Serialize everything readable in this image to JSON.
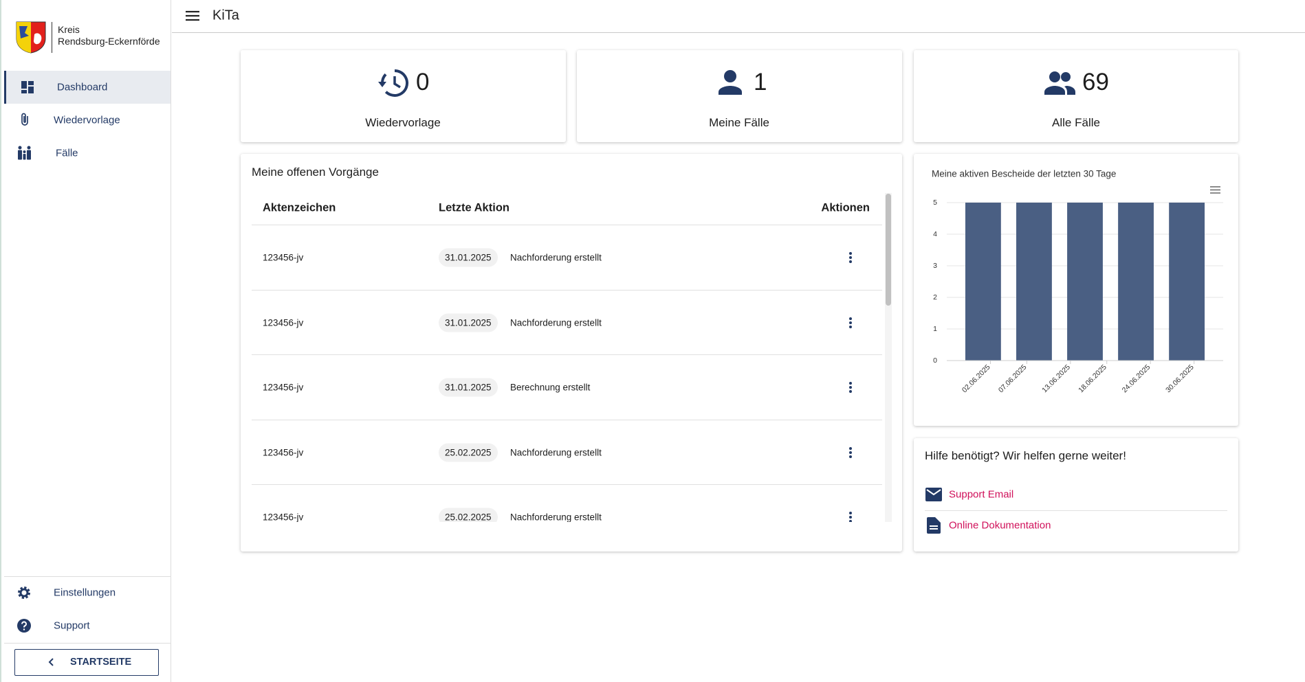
{
  "sidebar": {
    "logo": [
      "Kreis",
      "Rendsburg-Eckernförde"
    ],
    "nav": [
      "Dashboard",
      "Wiedervorlage",
      "Fälle"
    ],
    "footer_nav": [
      "Einstellungen",
      "Support"
    ],
    "button": "STARTSEITE"
  },
  "header": {
    "title": "KiTa"
  },
  "cards": [
    {
      "value": 0,
      "label": "Wiedervorlage"
    },
    {
      "value": 1,
      "label": "Meine Fälle"
    },
    {
      "value": 69,
      "label": "Alle Fälle"
    }
  ],
  "table": {
    "title": "Meine offenen Vorgänge",
    "columns": [
      "Aktenzeichen",
      "Letzte Aktion",
      "Aktionen"
    ],
    "rows": [
      [
        "123456-jv",
        "31.01.2025",
        "Nachforderung erstellt"
      ],
      [
        "123456-jv",
        "31.01.2025",
        "Nachforderung erstellt"
      ],
      [
        "123456-jv",
        "31.01.2025",
        "Berechnung erstellt"
      ],
      [
        "123456-jv",
        "25.02.2025",
        "Nachforderung erstellt"
      ],
      [
        "123456-jv",
        "25.02.2025",
        "Nachforderung erstellt"
      ]
    ]
  },
  "chart_data": {
    "type": "bar",
    "title": "Meine aktiven Bescheide der letzten 30 Tage",
    "categories": [
      "2025-06-01",
      "2025-06-08",
      "2025-06-15",
      "2025-06-22",
      "2025-06-29"
    ],
    "values": [
      5,
      5,
      5,
      5,
      5
    ],
    "color": "#4a5f83",
    "xlim": [
      "2025-05-27",
      "2025-07-04"
    ],
    "xticks": [
      {
        "value": "2025-06-02",
        "label": "02.06.2025"
      },
      {
        "value": "2025-06-07",
        "label": "07.06.2025"
      },
      {
        "value": "2025-06-13",
        "label": "13.06.2025"
      },
      {
        "value": "2025-06-18",
        "label": "18.06.2025"
      },
      {
        "value": "2025-06-24",
        "label": "24.06.2025"
      },
      {
        "value": "2025-06-30",
        "label": "30.06.2025"
      }
    ],
    "ylim": [
      0,
      5
    ],
    "yticks": [
      0,
      1,
      2,
      3,
      4,
      5
    ],
    "grid": true
  },
  "help": {
    "title": "Hilfe benötigt? Wir helfen gerne weiter!",
    "links": [
      "Support Email",
      "Online Dokumentation"
    ]
  }
}
